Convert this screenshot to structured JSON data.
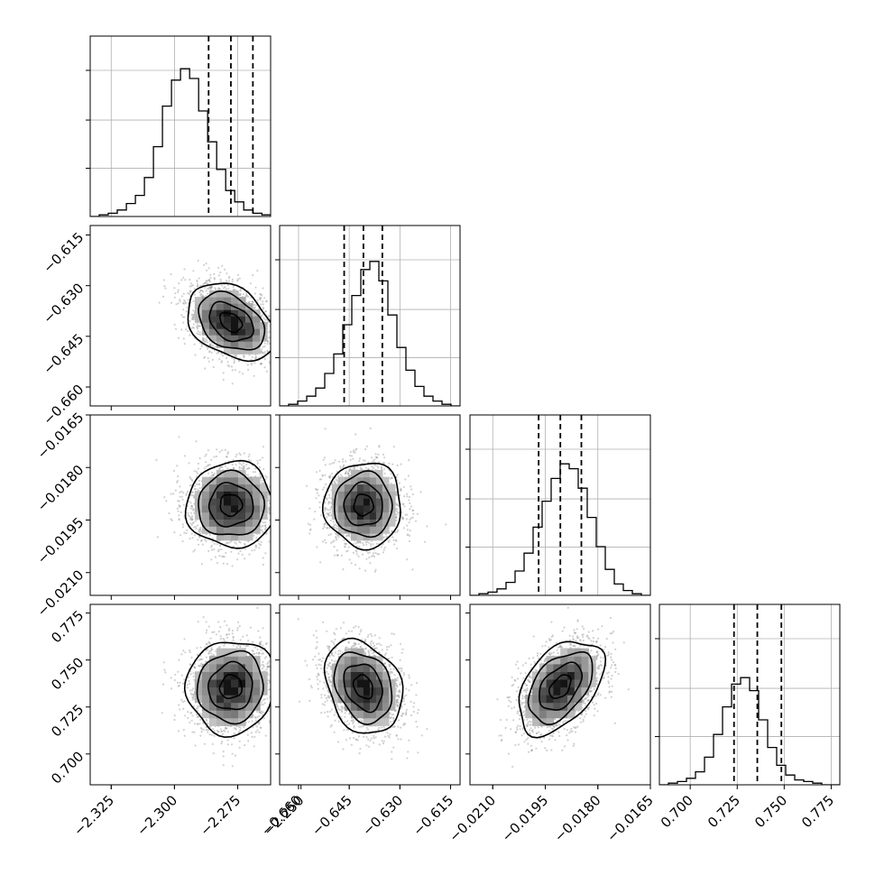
{
  "chart_data": {
    "type": "corner",
    "parameters": [
      {
        "x_ticks": [
          "−2.325",
          "−2.300",
          "−2.275",
          "−2.250"
        ],
        "x_tick_values": [
          -2.325,
          -2.3,
          -2.275,
          -2.25
        ],
        "range": [
          -2.3333,
          -2.262
        ],
        "histogram": {
          "edges_start": -2.3333,
          "bin_width": 0.00357,
          "counts": [
            0,
            0.01,
            0.02,
            0.04,
            0.08,
            0.13,
            0.24,
            0.43,
            0.68,
            0.84,
            0.91,
            0.85,
            0.65,
            0.46,
            0.29,
            0.16,
            0.09,
            0.04,
            0.02,
            0.01
          ]
        },
        "quantiles": [
          -2.2865,
          -2.2777,
          -2.269
        ]
      },
      {
        "x_ticks": [
          "−0.660",
          "−0.645",
          "−0.630",
          "−0.615"
        ],
        "y_ticks": [
          "−0.615",
          "−0.630",
          "−0.645",
          "−0.660"
        ],
        "x_tick_values": [
          -0.66,
          -0.645,
          -0.63,
          -0.615
        ],
        "y_tick_values": [
          -0.615,
          -0.63,
          -0.645,
          -0.66
        ],
        "range": [
          -0.6656,
          -0.6122
        ],
        "histogram": {
          "edges_start": -0.6656,
          "bin_width": 0.00267,
          "counts": [
            0,
            0.01,
            0.03,
            0.06,
            0.11,
            0.2,
            0.32,
            0.5,
            0.68,
            0.84,
            0.89,
            0.77,
            0.56,
            0.36,
            0.22,
            0.12,
            0.06,
            0.03,
            0.01,
            0
          ]
        },
        "quantiles": [
          -0.6465,
          -0.6408,
          -0.6352
        ]
      },
      {
        "x_ticks": [
          "−0.0210",
          "−0.0195",
          "−0.0180",
          "−0.0165"
        ],
        "y_ticks": [
          "−0.0165",
          "−0.0180",
          "−0.0195",
          "−0.0210"
        ],
        "x_tick_values": [
          -0.021,
          -0.0195,
          -0.018,
          -0.0165
        ],
        "y_tick_values": [
          -0.0165,
          -0.018,
          -0.0195,
          -0.021
        ],
        "range": [
          -0.02165,
          -0.0165
        ],
        "histogram": {
          "edges_start": -0.02165,
          "bin_width": 0.0002575,
          "counts": [
            0,
            0.01,
            0.02,
            0.04,
            0.08,
            0.15,
            0.26,
            0.42,
            0.58,
            0.72,
            0.81,
            0.78,
            0.66,
            0.48,
            0.3,
            0.16,
            0.07,
            0.03,
            0.01,
            0
          ]
        },
        "quantiles": [
          -0.01969,
          -0.01907,
          -0.01847
        ]
      },
      {
        "x_ticks": [
          "0.700",
          "0.725",
          "0.750",
          "0.775"
        ],
        "y_ticks": [
          "0.775",
          "0.750",
          "0.725",
          "0.700"
        ],
        "x_tick_values": [
          0.7,
          0.725,
          0.75,
          0.775
        ],
        "y_tick_values": [
          0.775,
          0.75,
          0.725,
          0.7
        ],
        "range": [
          0.6836,
          0.7796
        ],
        "histogram": {
          "edges_start": 0.6836,
          "bin_width": 0.0048,
          "counts": [
            0,
            0.01,
            0.02,
            0.04,
            0.08,
            0.17,
            0.31,
            0.48,
            0.62,
            0.66,
            0.58,
            0.4,
            0.23,
            0.12,
            0.06,
            0.03,
            0.02,
            0.01,
            0,
            0
          ]
        },
        "quantiles": [
          0.7233,
          0.7357,
          0.7485
        ]
      }
    ],
    "pairs": [
      {
        "x_param": 0,
        "y_param": 1,
        "mean": [
          -2.2777,
          -0.6408
        ],
        "std": [
          0.0087,
          0.0057
        ],
        "corr": -0.35
      },
      {
        "x_param": 0,
        "y_param": 2,
        "mean": [
          -2.2777,
          -0.01907
        ],
        "std": [
          0.0087,
          0.00061
        ],
        "corr": 0.0
      },
      {
        "x_param": 1,
        "y_param": 2,
        "mean": [
          -0.6408,
          -0.01907
        ],
        "std": [
          0.0057,
          0.00061
        ],
        "corr": 0.0
      },
      {
        "x_param": 0,
        "y_param": 3,
        "mean": [
          -2.2777,
          0.7357
        ],
        "std": [
          0.0087,
          0.0125
        ],
        "corr": 0.05
      },
      {
        "x_param": 1,
        "y_param": 3,
        "mean": [
          -0.6408,
          0.7357
        ],
        "std": [
          0.0057,
          0.0125
        ],
        "corr": -0.25
      },
      {
        "x_param": 2,
        "y_param": 3,
        "mean": [
          -0.01907,
          0.7357
        ],
        "std": [
          0.00061,
          0.0125
        ],
        "corr": 0.45
      }
    ],
    "contour_levels_sigma": [
      0.5,
      1.0,
      1.5,
      2.0
    ],
    "grid": true,
    "colors": {
      "line": "#000000",
      "grid": "#b0b0b0",
      "points": "#9a9a9a"
    }
  }
}
